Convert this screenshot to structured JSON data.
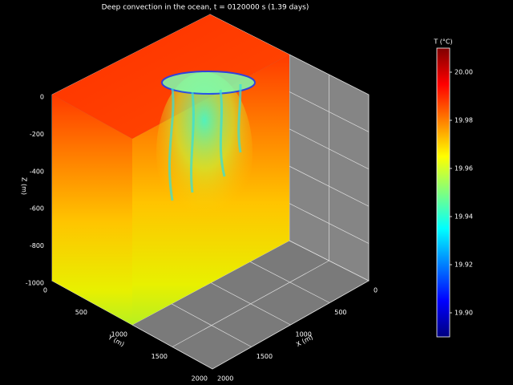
{
  "chart_data": {
    "type": "volume3d",
    "title": "Deep convection in the ocean, t = 0120000 s (1.39 days)",
    "xlabel": "X (m)",
    "ylabel": "Y (m)",
    "zlabel": "Z (m)",
    "xlim": [
      0,
      2000
    ],
    "xticks": [
      0,
      500,
      1000,
      1500,
      2000
    ],
    "ylim": [
      0,
      2000
    ],
    "yticks": [
      0,
      500,
      1000,
      1500,
      2000
    ],
    "zlim": [
      -1000,
      0
    ],
    "zticks": [
      -1000,
      -800,
      -600,
      -400,
      -200,
      0
    ],
    "grid": true,
    "colormap": "jet",
    "colorbar": {
      "label": "T (°C)",
      "clim": [
        19.89,
        20.01
      ],
      "ticks": [
        {
          "value": 19.9,
          "label": "19.90"
        },
        {
          "value": 19.92,
          "label": "19.92"
        },
        {
          "value": 19.94,
          "label": "19.94"
        },
        {
          "value": 19.96,
          "label": "19.96"
        },
        {
          "value": 19.98,
          "label": "19.98"
        },
        {
          "value": 20.0,
          "label": "20.00"
        }
      ]
    }
  }
}
